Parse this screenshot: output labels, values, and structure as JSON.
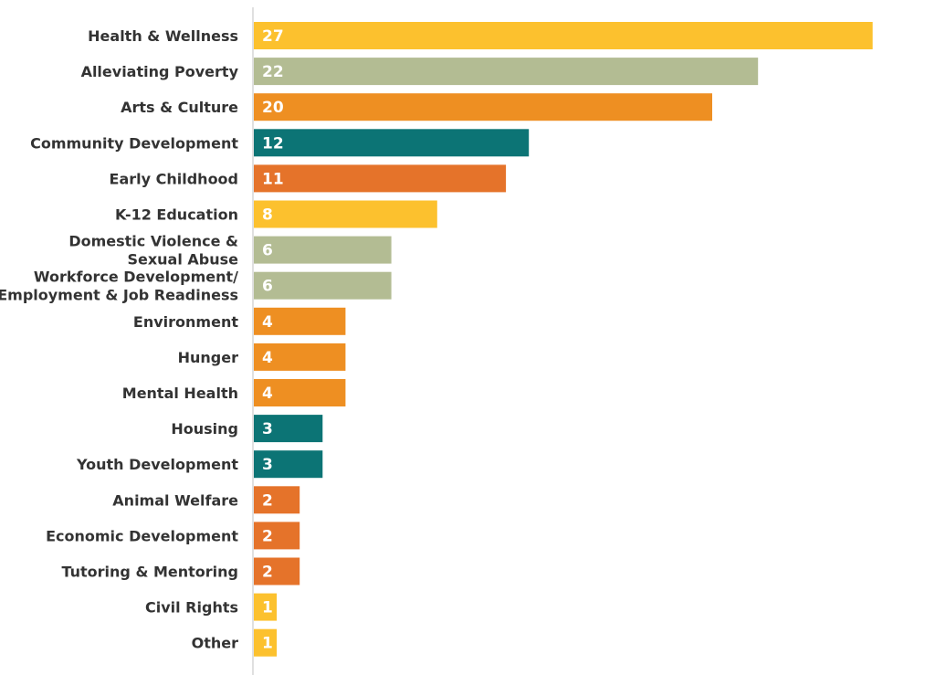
{
  "chart_data": {
    "type": "bar",
    "orientation": "horizontal",
    "title": "",
    "xlabel": "",
    "ylabel": "",
    "xlim": [
      0,
      27
    ],
    "grid": false,
    "legend": "none",
    "categories": [
      [
        "Health & Wellness"
      ],
      [
        "Alleviating Poverty"
      ],
      [
        "Arts & Culture"
      ],
      [
        "Community Development"
      ],
      [
        "Early Childhood"
      ],
      [
        "K-12 Education"
      ],
      [
        "Domestic Violence &",
        "Sexual Abuse"
      ],
      [
        "Workforce Development/",
        "Employment & Job Readiness"
      ],
      [
        "Environment"
      ],
      [
        "Hunger"
      ],
      [
        "Mental Health"
      ],
      [
        "Housing"
      ],
      [
        "Youth Development"
      ],
      [
        "Animal Welfare"
      ],
      [
        "Economic Development"
      ],
      [
        "Tutoring & Mentoring"
      ],
      [
        "Civil Rights"
      ],
      [
        "Other"
      ]
    ],
    "values": [
      27,
      22,
      20,
      12,
      11,
      8,
      6,
      6,
      4,
      4,
      4,
      3,
      3,
      2,
      2,
      2,
      1,
      1
    ],
    "colors": [
      "#FCC12E",
      "#B3BC93",
      "#EE8F22",
      "#0C7475",
      "#E5732A",
      "#FCC12E",
      "#B3BC93",
      "#B3BC93",
      "#EE8F22",
      "#EE8F22",
      "#EE8F22",
      "#0C7475",
      "#0C7475",
      "#E5732A",
      "#E5732A",
      "#E5732A",
      "#FCC12E",
      "#FCC12E"
    ]
  }
}
